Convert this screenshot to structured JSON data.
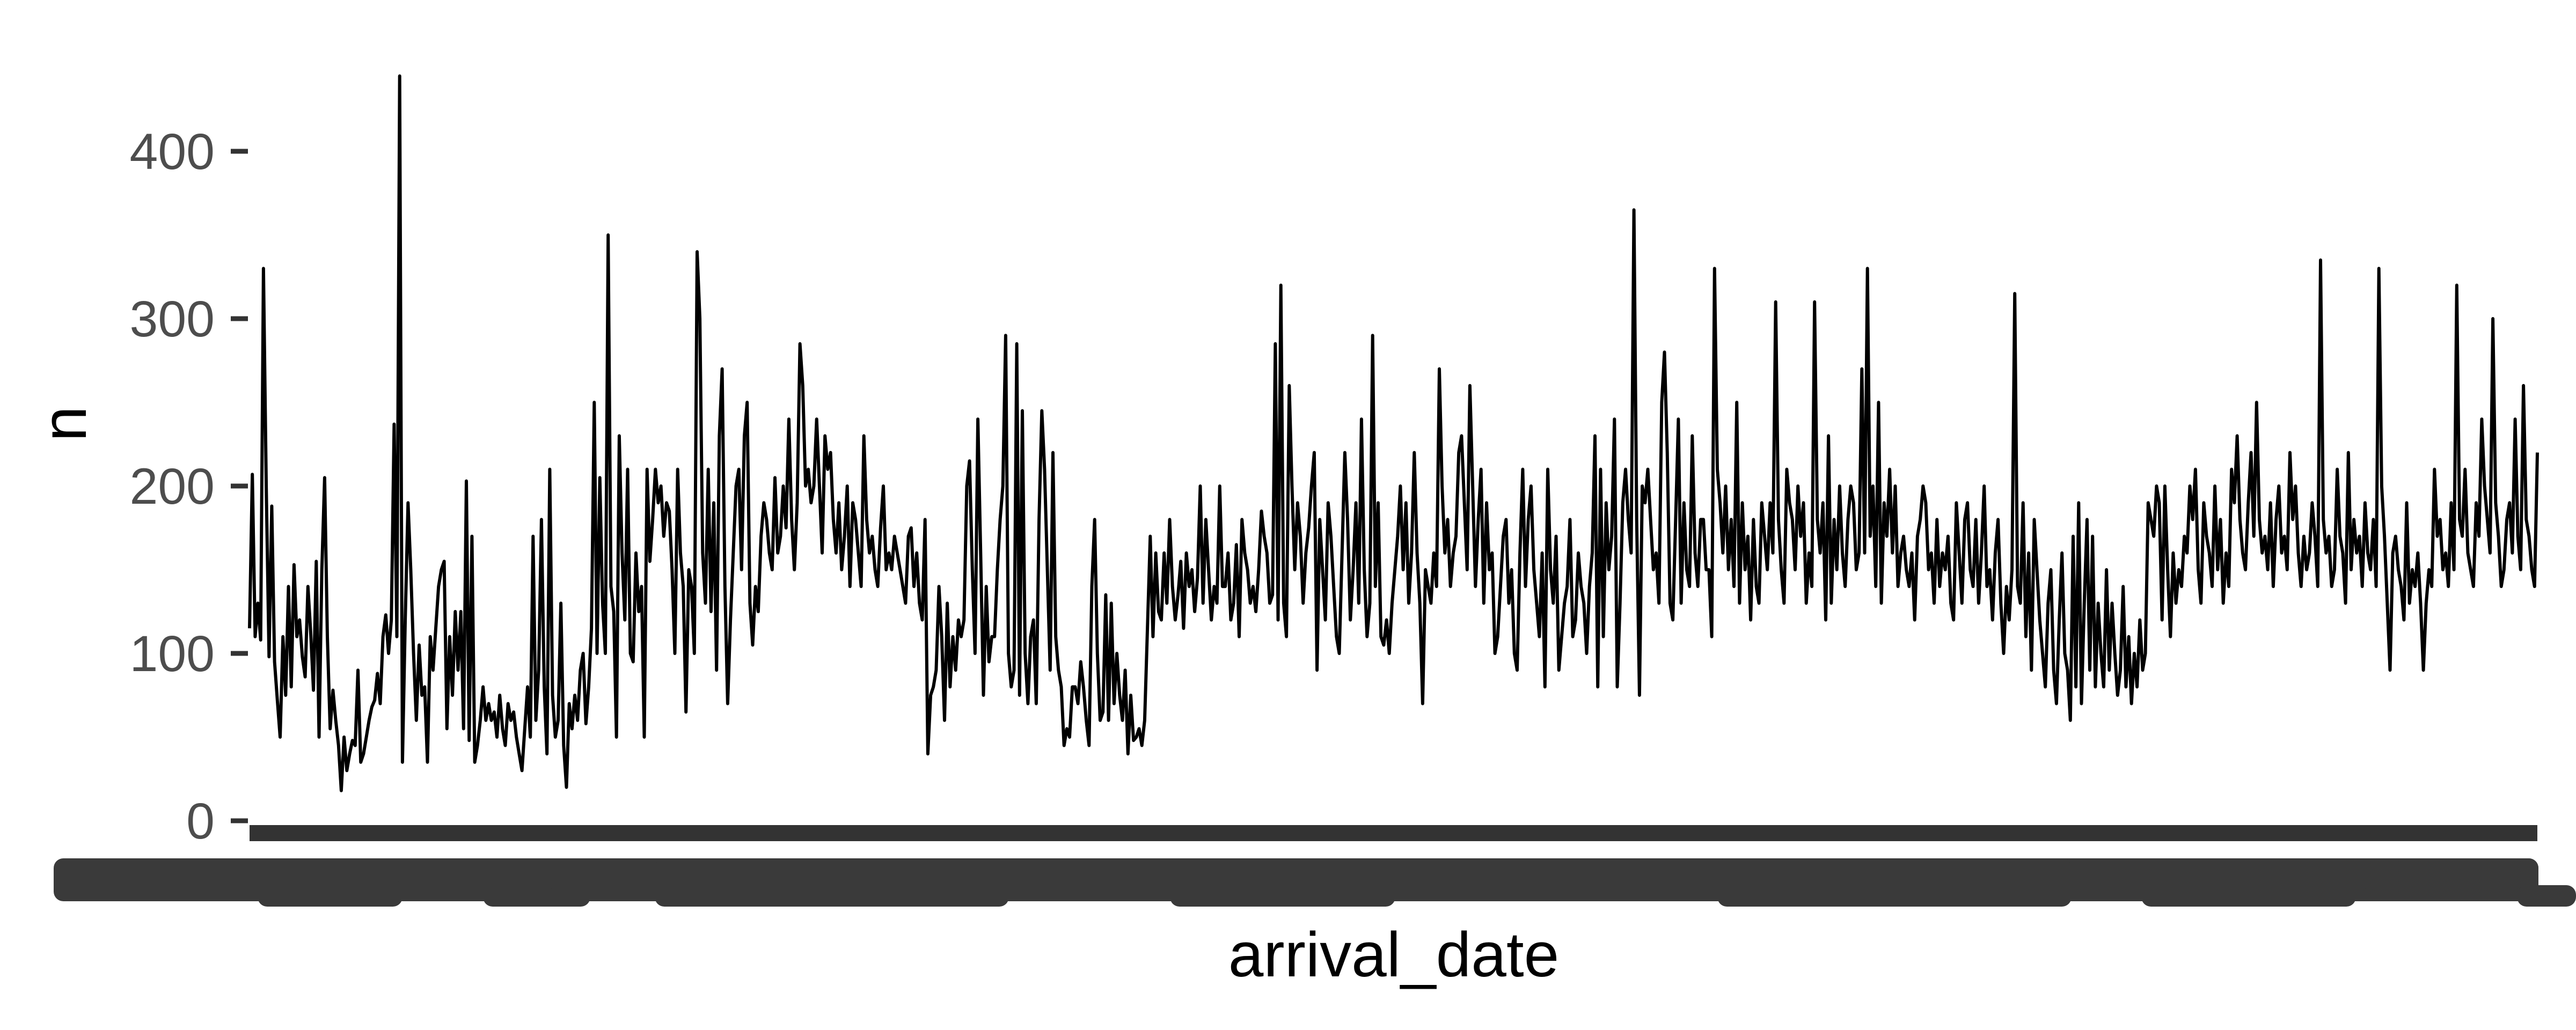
{
  "chart_data": {
    "type": "line",
    "xlabel": "arrival_date",
    "ylabel": "n",
    "ylim": [
      0,
      450
    ],
    "yticks": [
      0,
      100,
      200,
      300,
      400
    ],
    "x_tick_labels_readable": false,
    "grid": false,
    "legend": "none",
    "line_color": "#000000",
    "axis_text_color": "#4d4d4d",
    "series": [
      {
        "values": [
          115,
          207,
          110,
          130,
          108,
          330,
          200,
          98,
          188,
          95,
          72,
          50,
          110,
          75,
          140,
          80,
          153,
          110,
          120,
          98,
          86,
          140,
          112,
          78,
          155,
          50,
          150,
          205,
          110,
          55,
          78,
          60,
          45,
          18,
          50,
          30,
          40,
          48,
          45,
          90,
          35,
          40,
          50,
          60,
          68,
          72,
          88,
          70,
          110,
          123,
          100,
          120,
          237,
          110,
          445,
          35,
          120,
          190,
          150,
          100,
          60,
          105,
          75,
          80,
          35,
          110,
          90,
          115,
          140,
          150,
          155,
          55,
          110,
          75,
          125,
          90,
          125,
          55,
          203,
          48,
          170,
          35,
          45,
          60,
          80,
          60,
          70,
          60,
          65,
          50,
          75,
          55,
          45,
          70,
          60,
          65,
          50,
          40,
          30,
          55,
          80,
          50,
          170,
          60,
          90,
          180,
          80,
          40,
          210,
          75,
          50,
          60,
          130,
          45,
          20,
          70,
          55,
          75,
          60,
          90,
          100,
          58,
          80,
          115,
          250,
          100,
          205,
          130,
          100,
          350,
          140,
          125,
          50,
          230,
          160,
          120,
          210,
          100,
          95,
          160,
          125,
          140,
          50,
          210,
          155,
          180,
          210,
          190,
          200,
          170,
          190,
          185,
          150,
          100,
          210,
          160,
          140,
          65,
          150,
          140,
          100,
          340,
          300,
          160,
          130,
          210,
          125,
          190,
          90,
          230,
          270,
          140,
          70,
          120,
          160,
          200,
          210,
          150,
          230,
          250,
          130,
          105,
          140,
          125,
          170,
          190,
          180,
          160,
          150,
          205,
          160,
          170,
          200,
          175,
          240,
          180,
          150,
          190,
          285,
          260,
          200,
          210,
          190,
          200,
          240,
          200,
          160,
          230,
          210,
          220,
          180,
          160,
          190,
          150,
          170,
          200,
          140,
          190,
          180,
          160,
          140,
          230,
          180,
          160,
          170,
          150,
          140,
          175,
          200,
          150,
          160,
          150,
          170,
          160,
          150,
          140,
          130,
          170,
          175,
          140,
          160,
          130,
          120,
          180,
          40,
          75,
          80,
          90,
          140,
          110,
          60,
          130,
          80,
          110,
          90,
          120,
          110,
          120,
          200,
          215,
          150,
          100,
          240,
          160,
          75,
          140,
          95,
          110,
          110,
          150,
          180,
          200,
          290,
          100,
          80,
          90,
          285,
          75,
          245,
          100,
          70,
          110,
          120,
          70,
          180,
          245,
          210,
          150,
          90,
          220,
          110,
          90,
          80,
          45,
          55,
          50,
          80,
          80,
          70,
          95,
          80,
          60,
          45,
          140,
          180,
          100,
          60,
          65,
          135,
          60,
          130,
          70,
          100,
          75,
          60,
          90,
          40,
          75,
          48,
          50,
          55,
          45,
          60,
          115,
          170,
          110,
          160,
          125,
          120,
          160,
          130,
          180,
          140,
          120,
          135,
          155,
          115,
          160,
          140,
          150,
          125,
          145,
          200,
          130,
          180,
          150,
          120,
          140,
          130,
          200,
          140,
          140,
          160,
          120,
          130,
          165,
          110,
          180,
          160,
          150,
          130,
          140,
          125,
          150,
          185,
          170,
          160,
          130,
          135,
          285,
          120,
          320,
          130,
          110,
          260,
          200,
          150,
          190,
          170,
          130,
          160,
          175,
          200,
          220,
          90,
          180,
          150,
          120,
          190,
          170,
          140,
          110,
          100,
          160,
          220,
          180,
          120,
          150,
          190,
          130,
          240,
          150,
          110,
          130,
          290,
          140,
          190,
          110,
          105,
          120,
          100,
          130,
          150,
          170,
          200,
          150,
          190,
          130,
          160,
          220,
          160,
          130,
          70,
          150,
          140,
          130,
          160,
          140,
          270,
          200,
          160,
          180,
          140,
          160,
          170,
          220,
          230,
          190,
          150,
          260,
          200,
          140,
          180,
          210,
          130,
          190,
          150,
          160,
          100,
          110,
          140,
          170,
          180,
          130,
          150,
          100,
          90,
          160,
          210,
          140,
          180,
          200,
          150,
          130,
          110,
          160,
          80,
          210,
          150,
          130,
          170,
          90,
          110,
          130,
          140,
          180,
          110,
          120,
          160,
          140,
          130,
          100,
          140,
          160,
          230,
          80,
          210,
          110,
          190,
          150,
          170,
          240,
          80,
          130,
          190,
          210,
          180,
          160,
          365,
          180,
          75,
          200,
          190,
          210,
          180,
          150,
          160,
          130,
          250,
          280,
          220,
          130,
          120,
          180,
          240,
          130,
          190,
          150,
          140,
          230,
          160,
          140,
          180,
          180,
          150,
          150,
          110,
          330,
          210,
          190,
          160,
          200,
          150,
          180,
          140,
          250,
          130,
          190,
          150,
          170,
          120,
          180,
          140,
          130,
          190,
          170,
          150,
          190,
          160,
          310,
          180,
          150,
          130,
          210,
          190,
          180,
          150,
          200,
          170,
          190,
          130,
          160,
          140,
          310,
          180,
          160,
          190,
          120,
          230,
          130,
          180,
          150,
          200,
          160,
          140,
          180,
          200,
          190,
          150,
          160,
          270,
          160,
          330,
          170,
          200,
          140,
          250,
          130,
          190,
          170,
          210,
          160,
          200,
          140,
          160,
          170,
          150,
          140,
          160,
          120,
          170,
          180,
          200,
          190,
          150,
          160,
          130,
          180,
          140,
          160,
          150,
          170,
          130,
          120,
          190,
          160,
          130,
          180,
          190,
          150,
          140,
          180,
          130,
          160,
          200,
          140,
          150,
          120,
          160,
          180,
          130,
          100,
          140,
          120,
          150,
          315,
          140,
          130,
          190,
          110,
          160,
          90,
          180,
          150,
          120,
          100,
          80,
          130,
          150,
          90,
          70,
          120,
          160,
          100,
          90,
          60,
          170,
          80,
          190,
          70,
          130,
          180,
          90,
          170,
          80,
          130,
          100,
          80,
          150,
          90,
          130,
          100,
          75,
          90,
          140,
          80,
          110,
          70,
          100,
          80,
          120,
          90,
          100,
          190,
          180,
          170,
          200,
          190,
          120,
          200,
          150,
          110,
          160,
          130,
          150,
          140,
          170,
          160,
          200,
          180,
          210,
          150,
          130,
          190,
          170,
          160,
          140,
          200,
          150,
          180,
          130,
          160,
          140,
          210,
          190,
          230,
          180,
          160,
          150,
          190,
          220,
          170,
          250,
          180,
          160,
          170,
          150,
          190,
          140,
          180,
          200,
          160,
          170,
          150,
          220,
          180,
          200,
          160,
          140,
          170,
          150,
          160,
          190,
          170,
          140,
          335,
          180,
          160,
          170,
          140,
          150,
          210,
          170,
          160,
          130,
          220,
          150,
          180,
          160,
          170,
          140,
          190,
          160,
          150,
          180,
          140,
          330,
          200,
          170,
          130,
          90,
          160,
          170,
          150,
          140,
          120,
          190,
          130,
          150,
          140,
          160,
          130,
          90,
          130,
          150,
          140,
          210,
          170,
          180,
          150,
          160,
          140,
          190,
          150,
          320,
          180,
          170,
          210,
          160,
          150,
          140,
          190,
          170,
          240,
          200,
          180,
          160,
          300,
          190,
          170,
          140,
          150,
          180,
          190,
          160,
          240,
          170,
          150,
          260,
          180,
          170,
          150,
          140,
          220
        ]
      }
    ]
  }
}
